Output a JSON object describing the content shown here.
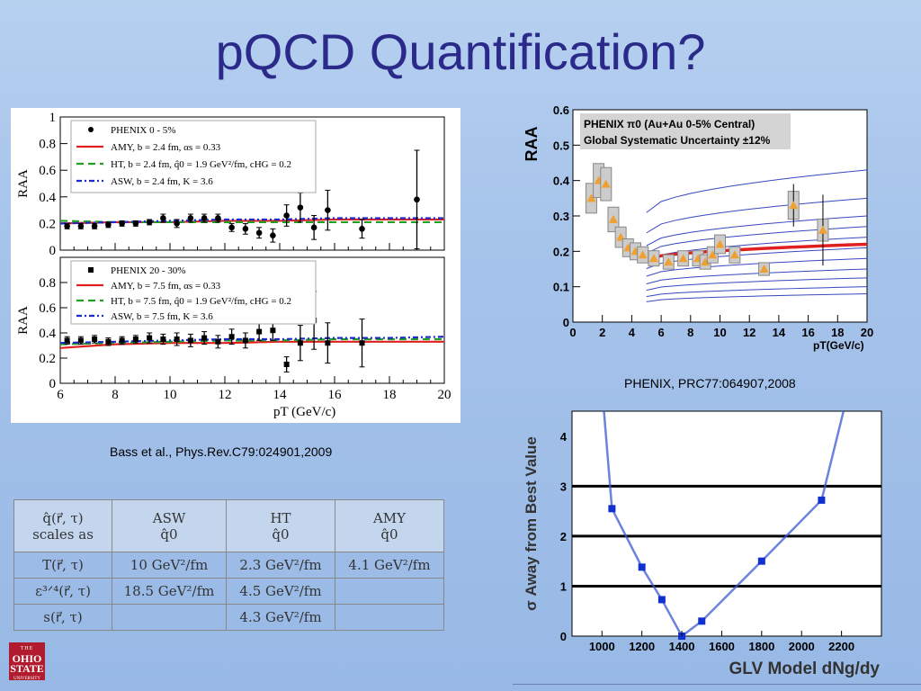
{
  "slide": {
    "title": "pQCD Quantification?",
    "caption_bass": "Bass et al., Phys.Rev.C79:024901,2009",
    "caption_phenix": "PHENIX, PRC77:064907,2008",
    "logo": {
      "top": "THE",
      "main1": "OHIO",
      "main2": "STATE",
      "sub": "UNIVERSITY"
    }
  },
  "colors": {
    "title": "#2b2a8a",
    "amy": "#e02020",
    "ht": "#20a020",
    "asw": "#1a2ad0",
    "phenix_marker": "#f0a030",
    "glv_line": "#3a5ad0",
    "glv_marker": "#1030d0"
  },
  "chart_data": [
    {
      "type": "scatter",
      "panel": "top-left",
      "ylabel": "RAA",
      "xlim": [
        6,
        20
      ],
      "ylim": [
        0,
        1
      ],
      "yticks": [
        "0",
        "0.2",
        "0.4",
        "0.6",
        "0.8",
        "1"
      ],
      "legend": [
        "PHENIX 0 - 5%",
        "AMY, b = 2.4 fm, αs = 0.33",
        "HT, b = 2.4 fm, q̂0 = 1.9 GeV²/fm, cHG = 0.2",
        "ASW, b = 2.4 fm, K = 3.6"
      ],
      "points": {
        "x": [
          6.25,
          6.75,
          7.25,
          7.75,
          8.25,
          8.75,
          9.25,
          9.75,
          10.25,
          10.75,
          11.25,
          11.75,
          12.25,
          12.75,
          13.25,
          13.75,
          14.25,
          14.75,
          15.25,
          15.75,
          17,
          19
        ],
        "y": [
          0.18,
          0.18,
          0.18,
          0.19,
          0.2,
          0.2,
          0.21,
          0.24,
          0.2,
          0.24,
          0.24,
          0.24,
          0.17,
          0.16,
          0.13,
          0.11,
          0.26,
          0.32,
          0.17,
          0.3,
          0.16,
          0.38
        ],
        "err": [
          0.02,
          0.02,
          0.02,
          0.02,
          0.02,
          0.02,
          0.02,
          0.03,
          0.03,
          0.03,
          0.03,
          0.03,
          0.03,
          0.04,
          0.04,
          0.05,
          0.08,
          0.11,
          0.09,
          0.15,
          0.07,
          0.37
        ]
      },
      "series": [
        {
          "name": "AMY",
          "x": [
            6,
            8,
            10,
            12,
            14,
            16,
            18,
            20
          ],
          "y": [
            0.2,
            0.21,
            0.21,
            0.22,
            0.22,
            0.23,
            0.23,
            0.23
          ]
        },
        {
          "name": "HT",
          "x": [
            6,
            8,
            10,
            12,
            14,
            16,
            18,
            20
          ],
          "y": [
            0.22,
            0.21,
            0.21,
            0.21,
            0.21,
            0.21,
            0.21,
            0.21
          ]
        },
        {
          "name": "ASW",
          "x": [
            6,
            8,
            10,
            12,
            14,
            16,
            18,
            20
          ],
          "y": [
            0.2,
            0.21,
            0.22,
            0.23,
            0.23,
            0.24,
            0.24,
            0.24
          ]
        }
      ]
    },
    {
      "type": "scatter",
      "panel": "bottom-left",
      "xlabel": "pT (GeV/c)",
      "ylabel": "RAA",
      "xlim": [
        6,
        20
      ],
      "ylim": [
        0,
        1
      ],
      "xticks": [
        "6",
        "8",
        "10",
        "12",
        "14",
        "16",
        "18",
        "20"
      ],
      "yticks": [
        "0",
        "0.2",
        "0.4",
        "0.6",
        "0.8"
      ],
      "legend": [
        "PHENIX 20 - 30%",
        "AMY, b = 7.5 fm, αs = 0.33",
        "HT, b = 7.5 fm, q̂0 = 1.9 GeV²/fm, cHG = 0.2",
        "ASW, b = 7.5 fm, K = 3.6"
      ],
      "points": {
        "x": [
          6.25,
          6.75,
          7.25,
          7.75,
          8.25,
          8.75,
          9.25,
          9.75,
          10.25,
          10.75,
          11.25,
          11.75,
          12.25,
          12.75,
          13.25,
          13.75,
          14.25,
          14.75,
          15.25,
          15.75,
          17
        ],
        "y": [
          0.34,
          0.34,
          0.35,
          0.33,
          0.34,
          0.35,
          0.36,
          0.35,
          0.35,
          0.34,
          0.36,
          0.33,
          0.37,
          0.34,
          0.41,
          0.42,
          0.15,
          0.32,
          0.5,
          0.32,
          0.32
        ],
        "err": [
          0.03,
          0.03,
          0.03,
          0.03,
          0.03,
          0.03,
          0.04,
          0.04,
          0.05,
          0.05,
          0.05,
          0.05,
          0.06,
          0.06,
          0.07,
          0.08,
          0.06,
          0.14,
          0.23,
          0.16,
          0.19
        ]
      },
      "series": [
        {
          "name": "AMY",
          "x": [
            6,
            8,
            10,
            12,
            14,
            16,
            18,
            20
          ],
          "y": [
            0.28,
            0.31,
            0.32,
            0.32,
            0.33,
            0.33,
            0.33,
            0.33
          ]
        },
        {
          "name": "HT",
          "x": [
            6,
            8,
            10,
            12,
            14,
            16,
            18,
            20
          ],
          "y": [
            0.31,
            0.32,
            0.33,
            0.34,
            0.34,
            0.35,
            0.35,
            0.35
          ]
        },
        {
          "name": "ASW",
          "x": [
            6,
            8,
            10,
            12,
            14,
            16,
            18,
            20
          ],
          "y": [
            0.32,
            0.33,
            0.34,
            0.35,
            0.35,
            0.36,
            0.36,
            0.37
          ]
        }
      ]
    },
    {
      "type": "scatter",
      "panel": "top-right",
      "ylabel": "RAA",
      "xlabel": "pT(GeV/c)",
      "xlim": [
        0,
        20
      ],
      "ylim": [
        0,
        0.6
      ],
      "xticks": [
        "0",
        "2",
        "4",
        "6",
        "8",
        "10",
        "12",
        "14",
        "16",
        "18",
        "20"
      ],
      "yticks": [
        "0",
        "0.1",
        "0.2",
        "0.3",
        "0.4",
        "0.5",
        "0.6"
      ],
      "legend_line1": "PHENIX π0 (Au+Au 0-5% Central)",
      "legend_line2": "Global Systematic Uncertainty ±12%",
      "points": {
        "x": [
          1.25,
          1.75,
          2.25,
          2.75,
          3.25,
          3.75,
          4.25,
          4.75,
          5.5,
          6.5,
          7.5,
          8.5,
          9,
          9.5,
          10,
          11,
          13,
          15,
          17
        ],
        "y": [
          0.35,
          0.4,
          0.39,
          0.29,
          0.24,
          0.21,
          0.2,
          0.19,
          0.18,
          0.17,
          0.18,
          0.18,
          0.17,
          0.19,
          0.22,
          0.19,
          0.15,
          0.33,
          0.26
        ],
        "err": [
          0.01,
          0.01,
          0.01,
          0.01,
          0.01,
          0.01,
          0.01,
          0.01,
          0.01,
          0.01,
          0.01,
          0.01,
          0.02,
          0.02,
          0.02,
          0.02,
          0.02,
          0.06,
          0.1
        ]
      },
      "model_curves_y_at_x20": [
        0.08,
        0.1,
        0.125,
        0.15,
        0.18,
        0.21,
        0.24,
        0.27,
        0.3,
        0.35,
        0.43
      ],
      "best_fit_y_at_x20": 0.22
    },
    {
      "type": "line",
      "panel": "bottom-right",
      "xlabel": "GLV Model dNg/dy",
      "ylabel": "σ Away from Best Value",
      "xlim": [
        850,
        2400
      ],
      "ylim": [
        0,
        4.5
      ],
      "xticks": [
        "1000",
        "1200",
        "1400",
        "1600",
        "1800",
        "2000",
        "2200"
      ],
      "yticks": [
        "0",
        "1",
        "2",
        "3",
        "4"
      ],
      "horizontal_lines": [
        1,
        2,
        3
      ],
      "points": {
        "x": [
          1050,
          1200,
          1300,
          1400,
          1500,
          1800,
          2100
        ],
        "y": [
          2.55,
          1.38,
          0.73,
          0,
          0.3,
          1.5,
          2.72
        ]
      }
    }
  ],
  "table": {
    "header": [
      {
        "c1": "q̂(r⃗, τ)",
        "c2": "scales as"
      },
      {
        "c1": "ASW",
        "c2": "q̂0"
      },
      {
        "c1": "HT",
        "c2": "q̂0"
      },
      {
        "c1": "AMY",
        "c2": "q̂0"
      }
    ],
    "rows": [
      [
        "T(r⃗, τ)",
        "10 GeV²/fm",
        "2.3 GeV²/fm",
        "4.1 GeV²/fm"
      ],
      [
        "ε³ᐟ⁴(r⃗, τ)",
        "18.5 GeV²/fm",
        "4.5 GeV²/fm",
        ""
      ],
      [
        "s(r⃗, τ)",
        "",
        "4.3 GeV²/fm",
        ""
      ]
    ]
  }
}
